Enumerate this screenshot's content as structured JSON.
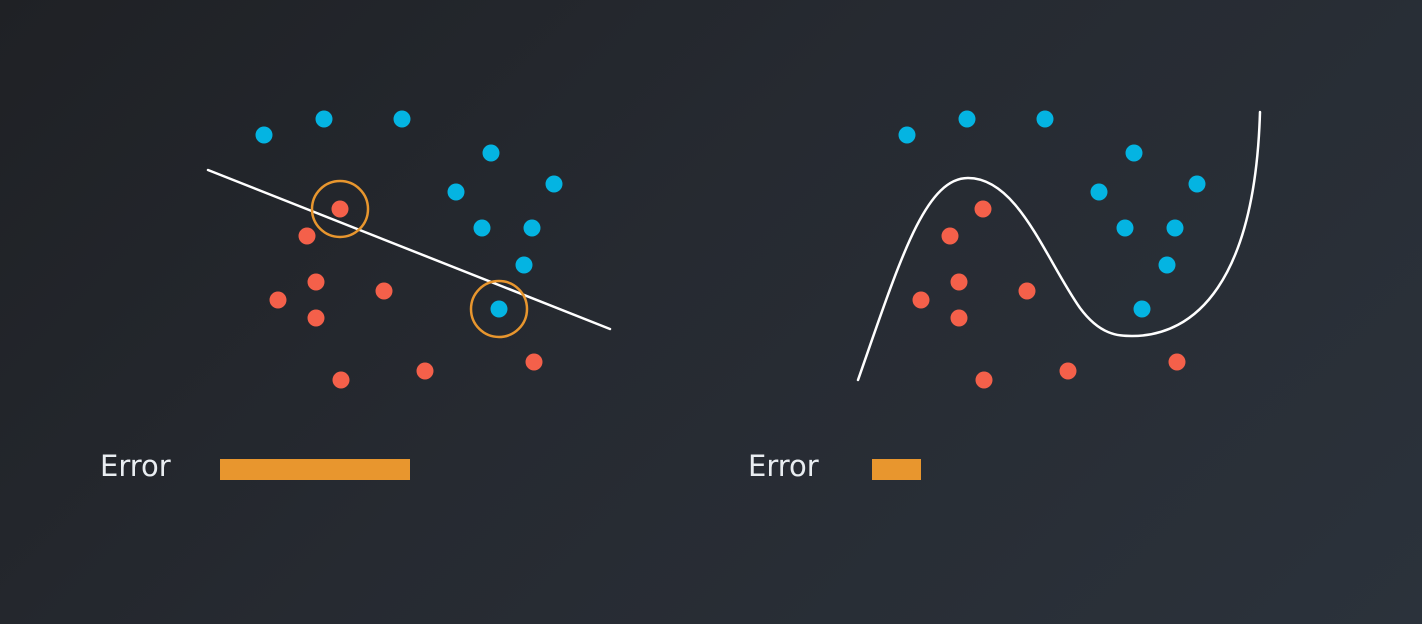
{
  "colors": {
    "class_a": "#04b4e2",
    "class_b": "#f4604a",
    "boundary": "#ffffff",
    "highlight": "#e8962e",
    "error_bar": "#e8962e"
  },
  "panels": [
    {
      "id": "linear",
      "error_label": "Error",
      "error_fraction": 1.0,
      "boundary_shape": "straight-line",
      "blue_points": [
        [
          264,
          135
        ],
        [
          324,
          119
        ],
        [
          402,
          119
        ],
        [
          491,
          153
        ],
        [
          554,
          184
        ],
        [
          456,
          192
        ],
        [
          482,
          228
        ],
        [
          532,
          228
        ],
        [
          524,
          265
        ],
        [
          499,
          309
        ]
      ],
      "red_points": [
        [
          340,
          209
        ],
        [
          307,
          236
        ],
        [
          316,
          282
        ],
        [
          384,
          291
        ],
        [
          278,
          300
        ],
        [
          316,
          318
        ],
        [
          341,
          380
        ],
        [
          425,
          371
        ],
        [
          534,
          362
        ]
      ],
      "circled_points": [
        [
          340,
          209
        ],
        [
          499,
          309
        ]
      ]
    },
    {
      "id": "curved",
      "error_label": "Error",
      "error_fraction": 0.26,
      "boundary_shape": "curve",
      "blue_points": [
        [
          907,
          135
        ],
        [
          967,
          119
        ],
        [
          1045,
          119
        ],
        [
          1134,
          153
        ],
        [
          1197,
          184
        ],
        [
          1099,
          192
        ],
        [
          1125,
          228
        ],
        [
          1175,
          228
        ],
        [
          1167,
          265
        ],
        [
          1142,
          309
        ]
      ],
      "red_points": [
        [
          983,
          209
        ],
        [
          950,
          236
        ],
        [
          959,
          282
        ],
        [
          1027,
          291
        ],
        [
          921,
          300
        ],
        [
          959,
          318
        ],
        [
          984,
          380
        ],
        [
          1068,
          371
        ],
        [
          1177,
          362
        ]
      ],
      "circled_points": []
    }
  ]
}
